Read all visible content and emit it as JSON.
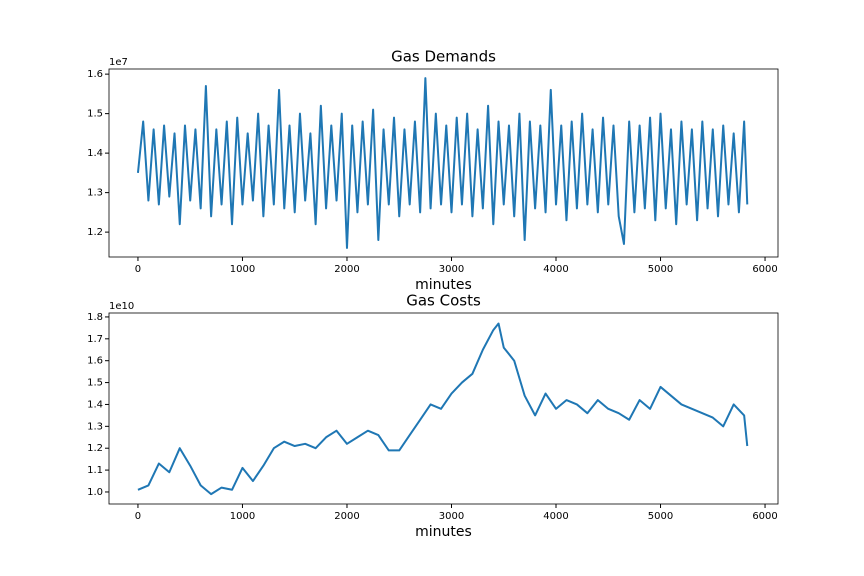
{
  "chart_data": [
    {
      "type": "line",
      "title": "Gas Demands",
      "x_label": "minutes",
      "offset_label": "1e7",
      "color": "#1f77b4",
      "xlim": [
        -277,
        6124
      ],
      "xticks": [
        0,
        1000,
        2000,
        3000,
        4000,
        5000,
        6000
      ],
      "ylim": [
        1.137,
        1.613
      ],
      "yticks": [
        {
          "value": 1.2,
          "label": "1.2"
        },
        {
          "value": 1.3,
          "label": "1.3"
        },
        {
          "value": 1.4,
          "label": "1.4"
        },
        {
          "value": 1.5,
          "label": "1.5"
        },
        {
          "value": 1.6,
          "label": "1.6"
        }
      ],
      "x": [
        0,
        50,
        100,
        150,
        200,
        250,
        300,
        350,
        400,
        450,
        500,
        550,
        600,
        650,
        700,
        750,
        800,
        850,
        900,
        950,
        1000,
        1050,
        1100,
        1150,
        1200,
        1250,
        1300,
        1350,
        1400,
        1450,
        1500,
        1550,
        1600,
        1650,
        1700,
        1750,
        1800,
        1850,
        1900,
        1950,
        2000,
        2050,
        2100,
        2150,
        2200,
        2250,
        2300,
        2350,
        2400,
        2450,
        2500,
        2550,
        2600,
        2650,
        2700,
        2750,
        2800,
        2850,
        2900,
        2950,
        3000,
        3050,
        3100,
        3150,
        3200,
        3250,
        3300,
        3350,
        3400,
        3450,
        3500,
        3550,
        3600,
        3650,
        3700,
        3750,
        3800,
        3850,
        3900,
        3950,
        4000,
        4050,
        4100,
        4150,
        4200,
        4250,
        4300,
        4350,
        4400,
        4450,
        4500,
        4550,
        4600,
        4650,
        4700,
        4750,
        4800,
        4850,
        4900,
        4950,
        5000,
        5050,
        5100,
        5150,
        5200,
        5250,
        5300,
        5350,
        5400,
        5450,
        5500,
        5550,
        5600,
        5650,
        5700,
        5750,
        5800,
        5830
      ],
      "values": [
        1.35,
        1.48,
        1.28,
        1.46,
        1.27,
        1.47,
        1.29,
        1.45,
        1.22,
        1.47,
        1.28,
        1.46,
        1.26,
        1.57,
        1.24,
        1.46,
        1.27,
        1.48,
        1.22,
        1.49,
        1.27,
        1.45,
        1.28,
        1.5,
        1.24,
        1.47,
        1.27,
        1.56,
        1.26,
        1.47,
        1.25,
        1.5,
        1.28,
        1.45,
        1.22,
        1.52,
        1.26,
        1.47,
        1.28,
        1.5,
        1.16,
        1.47,
        1.25,
        1.48,
        1.27,
        1.51,
        1.18,
        1.46,
        1.27,
        1.49,
        1.24,
        1.46,
        1.27,
        1.48,
        1.25,
        1.59,
        1.26,
        1.5,
        1.27,
        1.47,
        1.25,
        1.49,
        1.27,
        1.5,
        1.24,
        1.46,
        1.26,
        1.52,
        1.22,
        1.48,
        1.27,
        1.47,
        1.24,
        1.5,
        1.18,
        1.48,
        1.26,
        1.47,
        1.25,
        1.56,
        1.27,
        1.47,
        1.23,
        1.48,
        1.26,
        1.5,
        1.27,
        1.46,
        1.25,
        1.49,
        1.27,
        1.47,
        1.24,
        1.17,
        1.48,
        1.25,
        1.47,
        1.26,
        1.49,
        1.23,
        1.5,
        1.26,
        1.46,
        1.22,
        1.48,
        1.27,
        1.46,
        1.23,
        1.48,
        1.26,
        1.46,
        1.24,
        1.47,
        1.27,
        1.45,
        1.25,
        1.48,
        1.27
      ]
    },
    {
      "type": "line",
      "title": "Gas Costs",
      "x_label": "minutes",
      "offset_label": "1e10",
      "color": "#1f77b4",
      "xlim": [
        -277,
        6124
      ],
      "xticks": [
        0,
        1000,
        2000,
        3000,
        4000,
        5000,
        6000
      ],
      "ylim": [
        0.945,
        1.818
      ],
      "yticks": [
        {
          "value": 1.0,
          "label": "1.0"
        },
        {
          "value": 1.1,
          "label": "1.1"
        },
        {
          "value": 1.2,
          "label": "1.2"
        },
        {
          "value": 1.3,
          "label": "1.3"
        },
        {
          "value": 1.4,
          "label": "1.4"
        },
        {
          "value": 1.5,
          "label": "1.5"
        },
        {
          "value": 1.6,
          "label": "1.6"
        },
        {
          "value": 1.7,
          "label": "1.7"
        },
        {
          "value": 1.8,
          "label": "1.8"
        }
      ],
      "x": [
        0,
        100,
        200,
        300,
        400,
        500,
        600,
        700,
        800,
        900,
        1000,
        1100,
        1200,
        1300,
        1400,
        1500,
        1600,
        1700,
        1800,
        1900,
        2000,
        2100,
        2200,
        2300,
        2400,
        2500,
        2600,
        2700,
        2800,
        2900,
        3000,
        3100,
        3200,
        3300,
        3400,
        3450,
        3500,
        3600,
        3700,
        3800,
        3900,
        4000,
        4100,
        4200,
        4300,
        4400,
        4500,
        4600,
        4700,
        4800,
        4900,
        5000,
        5100,
        5200,
        5300,
        5400,
        5500,
        5600,
        5700,
        5800,
        5830
      ],
      "values": [
        1.01,
        1.03,
        1.13,
        1.09,
        1.2,
        1.12,
        1.03,
        0.99,
        1.02,
        1.01,
        1.11,
        1.05,
        1.12,
        1.2,
        1.23,
        1.21,
        1.22,
        1.2,
        1.25,
        1.28,
        1.22,
        1.25,
        1.28,
        1.26,
        1.19,
        1.19,
        1.26,
        1.33,
        1.4,
        1.38,
        1.45,
        1.5,
        1.54,
        1.65,
        1.74,
        1.77,
        1.66,
        1.6,
        1.44,
        1.35,
        1.45,
        1.38,
        1.42,
        1.4,
        1.36,
        1.42,
        1.38,
        1.36,
        1.33,
        1.42,
        1.38,
        1.48,
        1.44,
        1.4,
        1.38,
        1.36,
        1.34,
        1.3,
        1.4,
        1.35,
        1.21
      ]
    }
  ]
}
